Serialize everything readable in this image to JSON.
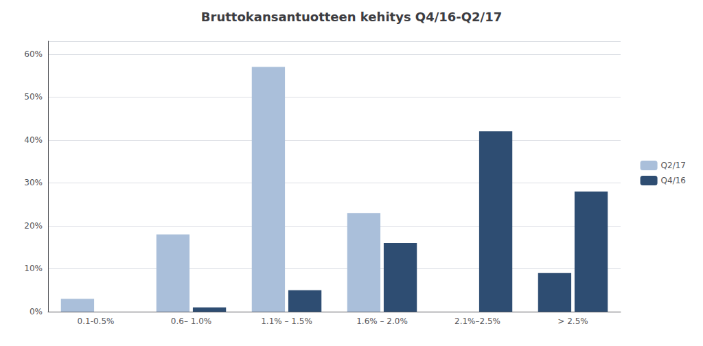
{
  "chart_data": {
    "type": "bar",
    "title": "Bruttokansantuotteen kehitys Q4/16-Q2/17",
    "categories": [
      "0.1-0.5%",
      "0.6– 1.0%",
      "1.1% – 1.5%",
      "1.6% – 2.0%",
      "2.1%–2.5%",
      "> 2.5%"
    ],
    "series": [
      {
        "name": "Q2/17",
        "color": "#AABFDA",
        "values": [
          3,
          18,
          57,
          23,
          0,
          9
        ],
        "colors": [
          "#AABFDA",
          "#AABFDA",
          "#AABFDA",
          "#AABFDA",
          "#AABFDA",
          "#2E4D72"
        ]
      },
      {
        "name": "Q4/16",
        "color": "#2E4D72",
        "values": [
          0,
          1,
          5,
          16,
          42,
          28
        ]
      }
    ],
    "ylim": [
      0,
      63
    ],
    "yticks": [
      {
        "value": 0,
        "label": "0%"
      },
      {
        "value": 10,
        "label": "10%"
      },
      {
        "value": 20,
        "label": "20%"
      },
      {
        "value": 30,
        "label": "30%"
      },
      {
        "value": 40,
        "label": "40%"
      },
      {
        "value": 50,
        "label": "50%"
      },
      {
        "value": 60,
        "label": "60%"
      }
    ],
    "grid": true,
    "legend": "right"
  }
}
